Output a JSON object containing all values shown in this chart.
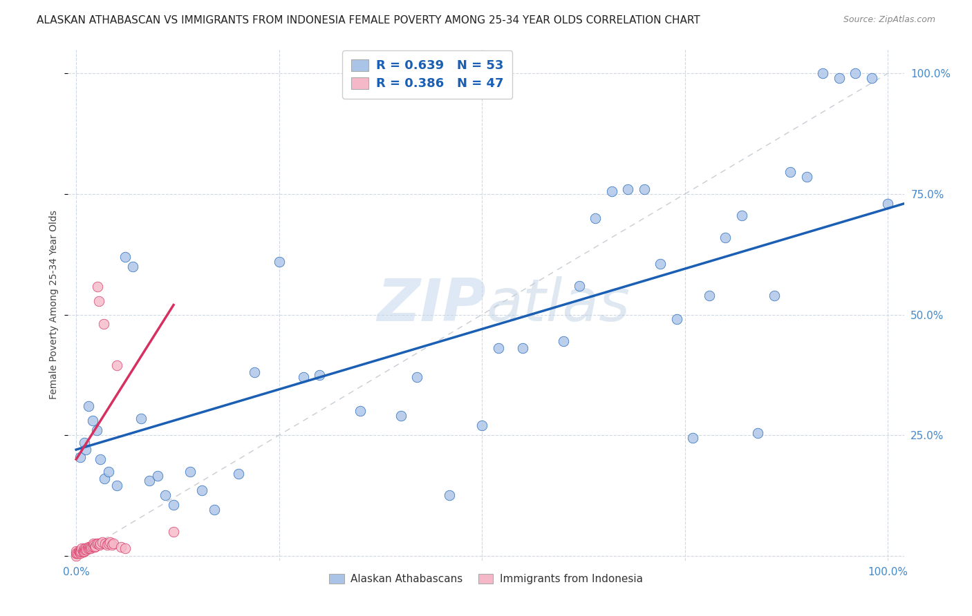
{
  "title": "ALASKAN ATHABASCAN VS IMMIGRANTS FROM INDONESIA FEMALE POVERTY AMONG 25-34 YEAR OLDS CORRELATION CHART",
  "source": "Source: ZipAtlas.com",
  "ylabel": "Female Poverty Among 25-34 Year Olds",
  "watermark": "ZIPatlas",
  "blue_R": 0.639,
  "blue_N": 53,
  "pink_R": 0.386,
  "pink_N": 47,
  "blue_color": "#aac4e8",
  "blue_line_color": "#1a5fb4",
  "pink_color": "#f5b8c8",
  "pink_line_color": "#d63060",
  "legend_R_color": "#1a5fb4",
  "axis_tick_color": "#4488cc",
  "grid_color": "#d0d8e4",
  "background_color": "#ffffff",
  "title_fontsize": 11,
  "axis_label_fontsize": 10,
  "blue_scatter_x": [
    0.005,
    0.01,
    0.012,
    0.015,
    0.02,
    0.025,
    0.03,
    0.035,
    0.04,
    0.05,
    0.06,
    0.07,
    0.08,
    0.09,
    0.1,
    0.11,
    0.12,
    0.14,
    0.155,
    0.17,
    0.2,
    0.22,
    0.25,
    0.28,
    0.3,
    0.35,
    0.4,
    0.42,
    0.46,
    0.5,
    0.52,
    0.55,
    0.6,
    0.62,
    0.64,
    0.66,
    0.68,
    0.7,
    0.72,
    0.74,
    0.76,
    0.78,
    0.8,
    0.82,
    0.84,
    0.86,
    0.88,
    0.9,
    0.92,
    0.94,
    0.96,
    0.98,
    1.0
  ],
  "blue_scatter_y": [
    0.205,
    0.235,
    0.22,
    0.31,
    0.28,
    0.26,
    0.2,
    0.16,
    0.175,
    0.145,
    0.62,
    0.6,
    0.285,
    0.155,
    0.165,
    0.125,
    0.105,
    0.175,
    0.135,
    0.095,
    0.17,
    0.38,
    0.61,
    0.37,
    0.375,
    0.3,
    0.29,
    0.37,
    0.125,
    0.27,
    0.43,
    0.43,
    0.445,
    0.56,
    0.7,
    0.755,
    0.76,
    0.76,
    0.605,
    0.49,
    0.245,
    0.54,
    0.66,
    0.705,
    0.255,
    0.54,
    0.795,
    0.785,
    1.0,
    0.99,
    1.0,
    0.99,
    0.73
  ],
  "pink_scatter_x": [
    0.0,
    0.0,
    0.0,
    0.001,
    0.002,
    0.003,
    0.004,
    0.005,
    0.005,
    0.006,
    0.007,
    0.008,
    0.009,
    0.01,
    0.01,
    0.011,
    0.012,
    0.013,
    0.014,
    0.015,
    0.016,
    0.017,
    0.018,
    0.019,
    0.02,
    0.021,
    0.022,
    0.023,
    0.024,
    0.025,
    0.026,
    0.027,
    0.028,
    0.029,
    0.03,
    0.032,
    0.034,
    0.036,
    0.038,
    0.04,
    0.042,
    0.044,
    0.046,
    0.05,
    0.055,
    0.06,
    0.12
  ],
  "pink_scatter_y": [
    0.0,
    0.005,
    0.01,
    0.005,
    0.005,
    0.01,
    0.008,
    0.005,
    0.008,
    0.01,
    0.015,
    0.01,
    0.008,
    0.01,
    0.015,
    0.012,
    0.015,
    0.012,
    0.015,
    0.018,
    0.015,
    0.018,
    0.015,
    0.018,
    0.02,
    0.025,
    0.022,
    0.018,
    0.02,
    0.025,
    0.558,
    0.025,
    0.528,
    0.022,
    0.025,
    0.028,
    0.48,
    0.025,
    0.022,
    0.025,
    0.028,
    0.022,
    0.025,
    0.395,
    0.018,
    0.015,
    0.05
  ],
  "xlim": [
    -0.01,
    1.02
  ],
  "ylim": [
    -0.01,
    1.05
  ],
  "xticks": [
    0.0,
    0.25,
    0.5,
    0.75,
    1.0
  ],
  "yticks": [
    0.0,
    0.25,
    0.5,
    0.75,
    1.0
  ],
  "xtick_labels": [
    "0.0%",
    "",
    "",
    "",
    "100.0%"
  ],
  "ytick_labels_right": [
    "",
    "25.0%",
    "50.0%",
    "75.0%",
    "100.0%"
  ]
}
